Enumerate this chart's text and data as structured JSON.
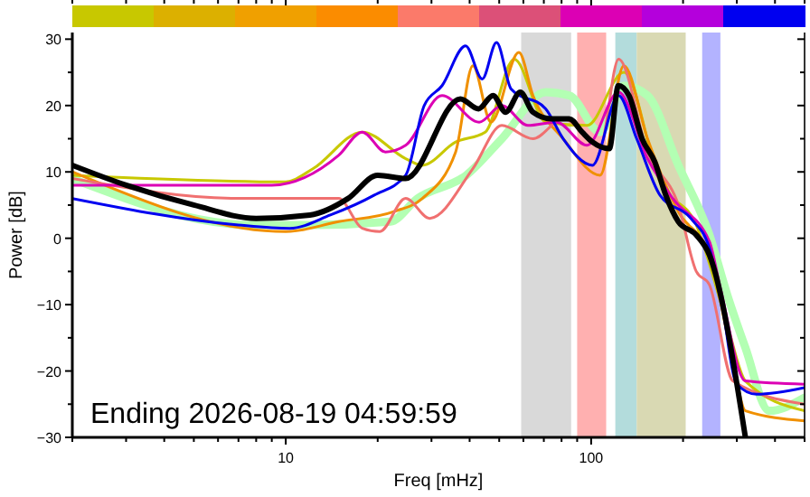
{
  "chart_data": {
    "type": "line",
    "xlabel": "Freq [mHz]",
    "ylabel": "Power [dB]",
    "log": "x",
    "grid": false,
    "marker": "none",
    "line_style": "solid",
    "xlim": [
      2,
      500
    ],
    "ylim": [
      -30,
      31
    ],
    "xticks": [
      {
        "value": 2,
        "label": null
      },
      {
        "value": 3,
        "label": null
      },
      {
        "value": 4,
        "label": null
      },
      {
        "value": 5,
        "label": null
      },
      {
        "value": 6,
        "label": null
      },
      {
        "value": 7,
        "label": null
      },
      {
        "value": 8,
        "label": null
      },
      {
        "value": 9,
        "label": null
      },
      10,
      {
        "value": 20,
        "label": null
      },
      {
        "value": 30,
        "label": null
      },
      {
        "value": 40,
        "label": null
      },
      {
        "value": 50,
        "label": null
      },
      {
        "value": 60,
        "label": null
      },
      {
        "value": 70,
        "label": null
      },
      {
        "value": 80,
        "label": null
      },
      {
        "value": 90,
        "label": null
      },
      100,
      {
        "value": 200,
        "label": null
      },
      {
        "value": 300,
        "label": null
      },
      {
        "value": 400,
        "label": null
      },
      {
        "value": 500,
        "label": null
      }
    ],
    "yticks": [
      -30,
      {
        "value": -25,
        "label": null
      },
      -20,
      {
        "value": -15,
        "label": null
      },
      -10,
      {
        "value": -5,
        "label": null
      },
      0,
      {
        "value": 5,
        "label": null
      },
      10,
      {
        "value": 15,
        "label": null
      },
      20,
      {
        "value": 25,
        "label": null
      },
      30
    ],
    "bands": [
      {
        "axis": "x",
        "from": 59,
        "to": 86,
        "color": "#d9d9d9"
      },
      {
        "axis": "x",
        "from": 90,
        "to": 112,
        "color": "#ffb0b0"
      },
      {
        "axis": "x",
        "from": 120,
        "to": 141,
        "color": "#b3dcdc"
      },
      {
        "axis": "x",
        "from": 141,
        "to": 204,
        "color": "#d9d9b3"
      },
      {
        "axis": "x",
        "from": 231,
        "to": 265,
        "color": "#b3b3ff"
      }
    ],
    "annotations": [
      "Ending 2026-08-19 04:59:59"
    ],
    "series": [
      {
        "color": "#b3ffb3",
        "x": [
          2,
          7.8,
          12.3,
          22,
          27,
          39,
          51,
          71,
          85,
          107,
          128,
          153,
          193,
          244,
          279,
          320,
          383,
          500
        ],
        "values": [
          9,
          2,
          2,
          2.5,
          6,
          9.5,
          15,
          22,
          21.5,
          16,
          23,
          21.5,
          11,
          0.5,
          -8.5,
          -16.5,
          -26,
          -24
        ]
      },
      {
        "color": "#c8c800",
        "x": [
          2,
          10,
          12.3,
          17.8,
          24.7,
          28,
          36,
          45,
          56,
          71,
          97,
          128,
          168,
          221,
          279,
          320,
          500
        ],
        "values": [
          9.5,
          8.5,
          10.5,
          16,
          12,
          11,
          14.5,
          16,
          27,
          17.5,
          17,
          25,
          8.5,
          2,
          -13,
          -21.5,
          -26
        ]
      },
      {
        "color": "#f09000",
        "x": [
          2,
          10,
          14.9,
          22.5,
          28,
          36,
          41,
          47,
          58,
          64.5,
          81,
          107,
          128,
          153,
          193,
          244,
          291,
          320,
          500
        ],
        "values": [
          10,
          1,
          2.5,
          4,
          6,
          13,
          26,
          17.5,
          28,
          21.5,
          15,
          9.5,
          26,
          15,
          4,
          -2.5,
          -18.5,
          -26,
          -27.5
        ]
      },
      {
        "color": "#f07070",
        "x": [
          2,
          7.1,
          14.9,
          17.8,
          20.3,
          24.7,
          29.6,
          41,
          51,
          64.5,
          81,
          107,
          123,
          153,
          193,
          221,
          244,
          291,
          500
        ],
        "values": [
          9,
          6,
          6,
          1.5,
          1,
          6,
          3,
          10.5,
          17,
          15,
          18,
          14,
          27,
          13,
          5,
          -5,
          -7,
          -21.5,
          -25
        ]
      },
      {
        "color": "#dc00b4",
        "x": [
          2,
          9,
          14.9,
          17.8,
          21.2,
          24.7,
          32.5,
          43,
          51,
          62,
          77,
          97,
          123,
          153,
          185,
          244,
          265,
          320,
          500
        ],
        "values": [
          8,
          8,
          12.5,
          16,
          13,
          14,
          21.5,
          17.5,
          20,
          17,
          17.5,
          14,
          22,
          12,
          6,
          -0.5,
          -7.5,
          -21.5,
          -22
        ]
      },
      {
        "color": "#0000f0",
        "x": [
          2,
          7,
          10.3,
          14,
          19.5,
          24.7,
          28.4,
          32.5,
          38.8,
          44,
          49,
          54.7,
          71,
          81,
          101,
          123,
          141,
          168,
          212,
          244,
          265,
          300,
          348,
          500
        ],
        "values": [
          6,
          2,
          1.5,
          3.5,
          6.5,
          9.5,
          20,
          23,
          29,
          24,
          29.5,
          22.5,
          19.5,
          15,
          11,
          21.5,
          15,
          6.5,
          3,
          -1.5,
          -8.5,
          -22,
          -23.5,
          -22.5
        ]
      },
      {
        "color": "#000000",
        "x": [
          2,
          3,
          5,
          8,
          12,
          16,
          20,
          24.7,
          37.3,
          42.8,
          47.7,
          52.5,
          58.6,
          64.5,
          74,
          84.8,
          93.4,
          101,
          114.7,
          122.8,
          133,
          146.8,
          161.6,
          175.5,
          193,
          221,
          244,
          320
        ],
        "values": [
          11,
          8,
          5,
          3,
          3.5,
          6,
          9.5,
          9,
          21,
          19.5,
          21.5,
          19,
          22,
          19,
          18,
          18,
          16,
          14.5,
          13.5,
          23,
          21.5,
          15,
          11.5,
          6.5,
          2.5,
          0.5,
          -2.5,
          -30
        ]
      }
    ]
  }
}
